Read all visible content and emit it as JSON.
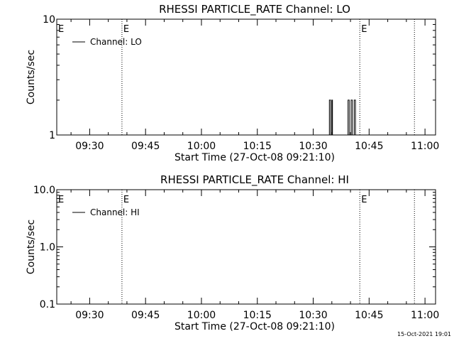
{
  "chart_data": [
    {
      "type": "line",
      "title": "RHESSI PARTICLE_RATE Channel: LO",
      "xlabel": "Start Time (27-Oct-08 09:21:10)",
      "ylabel": "Counts/sec",
      "yscale": "log",
      "ylim": [
        1,
        10
      ],
      "ytick_labels": [
        "1",
        "10"
      ],
      "xtick_labels": [
        "09:30",
        "09:45",
        "10:00",
        "10:15",
        "10:30",
        "10:45",
        "11:00"
      ],
      "xlim": [
        "09:21:10",
        "11:02:50"
      ],
      "legend": {
        "placement": "top-left",
        "entries": [
          "Channel: LO"
        ]
      },
      "markers": [
        {
          "time": "09:38:40",
          "label": "E"
        },
        {
          "time": "10:42:30",
          "label": "E"
        },
        {
          "time": "10:57:10",
          "label": ""
        }
      ],
      "edge_marker_labels": [
        "E"
      ],
      "series": [
        {
          "name": "Channel: LO",
          "points": [
            [
              "10:34:20",
              1
            ],
            [
              "10:34:20",
              2
            ],
            [
              "10:34:40",
              2
            ],
            [
              "10:34:40",
              1
            ],
            [
              "10:35:00",
              1
            ],
            [
              "10:35:00",
              2
            ],
            [
              "10:35:10",
              2
            ],
            [
              "10:35:10",
              1
            ],
            [
              "10:39:20",
              1
            ],
            [
              "10:39:20",
              2
            ],
            [
              "10:39:40",
              2
            ],
            [
              "10:39:40",
              1
            ],
            [
              "10:40:10",
              1
            ],
            [
              "10:40:10",
              2
            ],
            [
              "10:40:30",
              2
            ],
            [
              "10:40:30",
              1
            ],
            [
              "10:41:00",
              1
            ],
            [
              "10:41:00",
              2
            ],
            [
              "10:41:20",
              2
            ],
            [
              "10:41:20",
              1
            ]
          ]
        }
      ]
    },
    {
      "type": "line",
      "title": "RHESSI PARTICLE_RATE Channel: HI",
      "xlabel": "Start Time (27-Oct-08 09:21:10)",
      "ylabel": "Counts/sec",
      "yscale": "log",
      "ylim": [
        0.1,
        10
      ],
      "ytick_labels": [
        "0.1",
        "1.0",
        "10.0"
      ],
      "xtick_labels": [
        "09:30",
        "09:45",
        "10:00",
        "10:15",
        "10:30",
        "10:45",
        "11:00"
      ],
      "xlim": [
        "09:21:10",
        "11:02:50"
      ],
      "legend": {
        "placement": "top-left",
        "entries": [
          "Channel: HI"
        ]
      },
      "markers": [
        {
          "time": "09:38:40",
          "label": "E"
        },
        {
          "time": "10:42:30",
          "label": "E"
        },
        {
          "time": "10:57:10",
          "label": ""
        }
      ],
      "edge_marker_labels": [
        "E"
      ],
      "series": [
        {
          "name": "Channel: HI",
          "points": []
        }
      ]
    }
  ],
  "footer": {
    "timestamp": "15-Oct-2021 19:01"
  }
}
